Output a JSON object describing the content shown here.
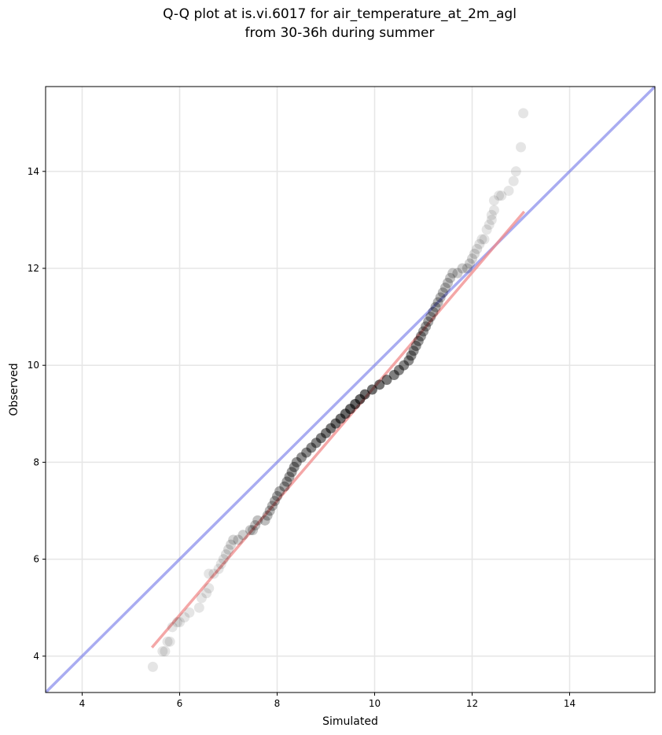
{
  "chart_data": {
    "type": "scatter",
    "title_line1": "Q-Q plot at is.vi.6017 for air_temperature_at_2m_agl",
    "title_line2": "from 30-36h during summer",
    "xlabel": "Simulated",
    "ylabel": "Observed",
    "xlim": [
      3.25,
      15.75
    ],
    "ylim": [
      3.25,
      15.75
    ],
    "xticks": [
      4,
      6,
      8,
      10,
      12,
      14
    ],
    "yticks": [
      4,
      6,
      8,
      10,
      12,
      14
    ],
    "grid": true,
    "reference_line": {
      "name": "1:1 line",
      "color": "#6f75e8",
      "x": [
        3.25,
        15.75
      ],
      "y": [
        3.25,
        15.75
      ]
    },
    "fit_line": {
      "name": "fit line",
      "color": "#f08a8a",
      "x": [
        5.45,
        13.05
      ],
      "y": [
        4.2,
        13.15
      ]
    },
    "point_color": "#000000",
    "points": [
      [
        5.45,
        3.78
      ],
      [
        5.65,
        4.1
      ],
      [
        5.7,
        4.1
      ],
      [
        5.75,
        4.3
      ],
      [
        5.8,
        4.3
      ],
      [
        5.85,
        4.6
      ],
      [
        5.95,
        4.7
      ],
      [
        6.0,
        4.7
      ],
      [
        6.1,
        4.8
      ],
      [
        6.2,
        4.9
      ],
      [
        6.4,
        5.0
      ],
      [
        6.45,
        5.2
      ],
      [
        6.55,
        5.3
      ],
      [
        6.6,
        5.4
      ],
      [
        6.6,
        5.7
      ],
      [
        6.7,
        5.7
      ],
      [
        6.8,
        5.8
      ],
      [
        6.85,
        5.9
      ],
      [
        6.9,
        6.0
      ],
      [
        6.95,
        6.1
      ],
      [
        7.0,
        6.2
      ],
      [
        7.05,
        6.3
      ],
      [
        7.1,
        6.4
      ],
      [
        7.2,
        6.4
      ],
      [
        7.3,
        6.5
      ],
      [
        7.45,
        6.6
      ],
      [
        7.5,
        6.6
      ],
      [
        7.55,
        6.7
      ],
      [
        7.6,
        6.8
      ],
      [
        7.75,
        6.8
      ],
      [
        7.8,
        6.9
      ],
      [
        7.85,
        7.0
      ],
      [
        7.9,
        7.1
      ],
      [
        7.95,
        7.2
      ],
      [
        8.0,
        7.3
      ],
      [
        8.05,
        7.4
      ],
      [
        8.15,
        7.5
      ],
      [
        8.2,
        7.6
      ],
      [
        8.25,
        7.7
      ],
      [
        8.3,
        7.8
      ],
      [
        8.35,
        7.9
      ],
      [
        8.4,
        8.0
      ],
      [
        8.5,
        8.1
      ],
      [
        8.6,
        8.2
      ],
      [
        8.7,
        8.3
      ],
      [
        8.8,
        8.4
      ],
      [
        8.9,
        8.5
      ],
      [
        9.0,
        8.6
      ],
      [
        9.1,
        8.7
      ],
      [
        9.2,
        8.8
      ],
      [
        9.3,
        8.9
      ],
      [
        9.4,
        9.0
      ],
      [
        9.5,
        9.1
      ],
      [
        9.6,
        9.2
      ],
      [
        9.7,
        9.3
      ],
      [
        9.8,
        9.4
      ],
      [
        9.95,
        9.5
      ],
      [
        10.1,
        9.6
      ],
      [
        10.25,
        9.7
      ],
      [
        10.4,
        9.8
      ],
      [
        10.5,
        9.9
      ],
      [
        10.6,
        10.0
      ],
      [
        10.7,
        10.1
      ],
      [
        10.75,
        10.2
      ],
      [
        10.8,
        10.3
      ],
      [
        10.85,
        10.4
      ],
      [
        10.9,
        10.5
      ],
      [
        10.95,
        10.6
      ],
      [
        11.0,
        10.7
      ],
      [
        11.05,
        10.8
      ],
      [
        11.1,
        10.9
      ],
      [
        11.15,
        11.0
      ],
      [
        11.2,
        11.1
      ],
      [
        11.25,
        11.2
      ],
      [
        11.3,
        11.3
      ],
      [
        11.35,
        11.4
      ],
      [
        11.4,
        11.5
      ],
      [
        11.45,
        11.6
      ],
      [
        11.5,
        11.7
      ],
      [
        11.55,
        11.8
      ],
      [
        11.6,
        11.9
      ],
      [
        11.7,
        11.9
      ],
      [
        11.8,
        12.0
      ],
      [
        11.9,
        12.0
      ],
      [
        11.95,
        12.1
      ],
      [
        12.0,
        12.2
      ],
      [
        12.05,
        12.3
      ],
      [
        12.1,
        12.4
      ],
      [
        12.15,
        12.5
      ],
      [
        12.2,
        12.6
      ],
      [
        12.25,
        12.6
      ],
      [
        12.3,
        12.8
      ],
      [
        12.35,
        12.9
      ],
      [
        12.4,
        13.0
      ],
      [
        12.4,
        13.1
      ],
      [
        12.45,
        13.2
      ],
      [
        12.45,
        13.4
      ],
      [
        12.55,
        13.5
      ],
      [
        12.6,
        13.5
      ],
      [
        12.75,
        13.6
      ],
      [
        12.85,
        13.8
      ],
      [
        12.9,
        14.0
      ],
      [
        13.0,
        14.5
      ],
      [
        13.05,
        15.2
      ]
    ]
  }
}
